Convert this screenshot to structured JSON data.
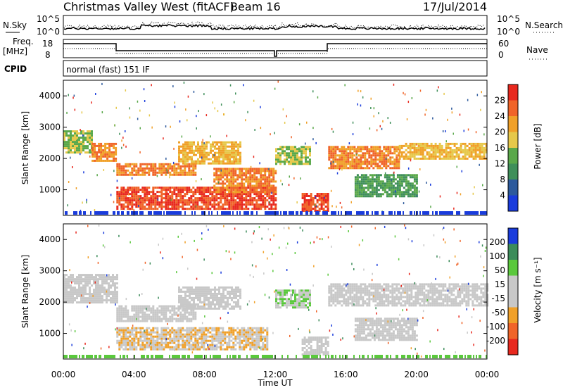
{
  "header": {
    "station": "Christmas Valley West (fitACF)",
    "beam": "Beam 16",
    "date": "17/Jul/2014"
  },
  "strip": {
    "nsky_label": "N.Sky",
    "nsearch_label": "N.Search",
    "noise_ticks": [
      "10^5",
      "10^0"
    ],
    "freq_label": "Freq.",
    "freq_unit": "[MHz]",
    "freq_ticks": [
      "18",
      "8"
    ],
    "nave_label": "Nave",
    "nave_ticks": [
      "60",
      "0"
    ],
    "cpid_label": "CPID",
    "cpid_text": "normal (fast) 151 IF"
  },
  "colors": {
    "noise_trace": "#000000",
    "power": [
      "#1a3cdc",
      "#2d5a9c",
      "#3f8f5a",
      "#5aa84a",
      "#e6c84a",
      "#f0a028",
      "#f06428",
      "#e8281e"
    ],
    "velocity": [
      "#e8281e",
      "#f06428",
      "#f0a028",
      "#c8c8c8",
      "#c8c8c8",
      "#5ac83c",
      "#3c8c5a",
      "#1a3cdc"
    ]
  },
  "chart_data": [
    {
      "type": "heatmap",
      "panel": "power",
      "ylabel": "Slant Range [km]",
      "ylim": [
        180,
        4500
      ],
      "yticks": [
        "4000",
        "3000",
        "2000",
        "1000"
      ],
      "xlim": [
        0,
        24
      ],
      "xticks": [
        "00:00",
        "04:00",
        "08:00",
        "12:00",
        "16:00",
        "20:00",
        "00:00"
      ],
      "xlabel": "Time UT",
      "colorbar": {
        "label": "Power [dB]",
        "range": [
          0,
          32
        ],
        "ticks": [
          "28",
          "24",
          "20",
          "16",
          "12",
          "8",
          "4"
        ]
      },
      "echo_bands": [
        {
          "t0": 0.0,
          "t1": 1.6,
          "r0": 2200,
          "r1": 2900,
          "level": 16
        },
        {
          "t0": 1.6,
          "t1": 3.0,
          "r0": 1900,
          "r1": 2500,
          "level": 24
        },
        {
          "t0": 3.0,
          "t1": 7.5,
          "r0": 1500,
          "r1": 1850,
          "level": 24
        },
        {
          "t0": 3.0,
          "t1": 12.0,
          "r0": 420,
          "r1": 1100,
          "level": 28
        },
        {
          "t0": 6.5,
          "t1": 10.0,
          "r0": 1850,
          "r1": 2550,
          "level": 20
        },
        {
          "t0": 8.5,
          "t1": 12.0,
          "r0": 900,
          "r1": 1700,
          "level": 24
        },
        {
          "t0": 12.0,
          "t1": 14.0,
          "r0": 1800,
          "r1": 2400,
          "level": 16
        },
        {
          "t0": 13.5,
          "t1": 15.0,
          "r0": 300,
          "r1": 900,
          "level": 28
        },
        {
          "t0": 15.0,
          "t1": 19.0,
          "r0": 1700,
          "r1": 2400,
          "level": 24
        },
        {
          "t0": 19.0,
          "t1": 24.0,
          "r0": 2000,
          "r1": 2500,
          "level": 20
        },
        {
          "t0": 16.5,
          "t1": 20.0,
          "r0": 800,
          "r1": 1500,
          "level": 12
        }
      ]
    },
    {
      "type": "heatmap",
      "panel": "velocity",
      "ylabel": "Slant Range [km]",
      "ylim": [
        180,
        4500
      ],
      "yticks": [
        "4000",
        "3000",
        "2000",
        "1000"
      ],
      "xlim": [
        0,
        24
      ],
      "xticks": [
        "00:00",
        "04:00",
        "08:00",
        "12:00",
        "16:00",
        "20:00",
        "00:00"
      ],
      "xlabel": "Time UT",
      "colorbar": {
        "label": "Velocity [m s⁻¹]",
        "range": [
          -250,
          250
        ],
        "ticks": [
          "200",
          "100",
          "50",
          "15",
          "-15",
          "-50",
          "-100",
          "-200"
        ]
      },
      "echo_bands": [
        {
          "t0": 0.0,
          "t1": 3.0,
          "r0": 2000,
          "r1": 2900,
          "level": 0
        },
        {
          "t0": 3.0,
          "t1": 7.5,
          "r0": 1400,
          "r1": 1900,
          "level": 0
        },
        {
          "t0": 3.0,
          "t1": 11.5,
          "r0": 500,
          "r1": 1200,
          "level": -50
        },
        {
          "t0": 6.5,
          "t1": 10.0,
          "r0": 1800,
          "r1": 2500,
          "level": 0
        },
        {
          "t0": 12.0,
          "t1": 14.0,
          "r0": 1800,
          "r1": 2400,
          "level": 50
        },
        {
          "t0": 13.5,
          "t1": 15.0,
          "r0": 300,
          "r1": 900,
          "level": 0
        },
        {
          "t0": 15.0,
          "t1": 24.0,
          "r0": 1900,
          "r1": 2600,
          "level": 0
        },
        {
          "t0": 16.5,
          "t1": 20.0,
          "r0": 800,
          "r1": 1500,
          "level": 0
        }
      ]
    }
  ]
}
